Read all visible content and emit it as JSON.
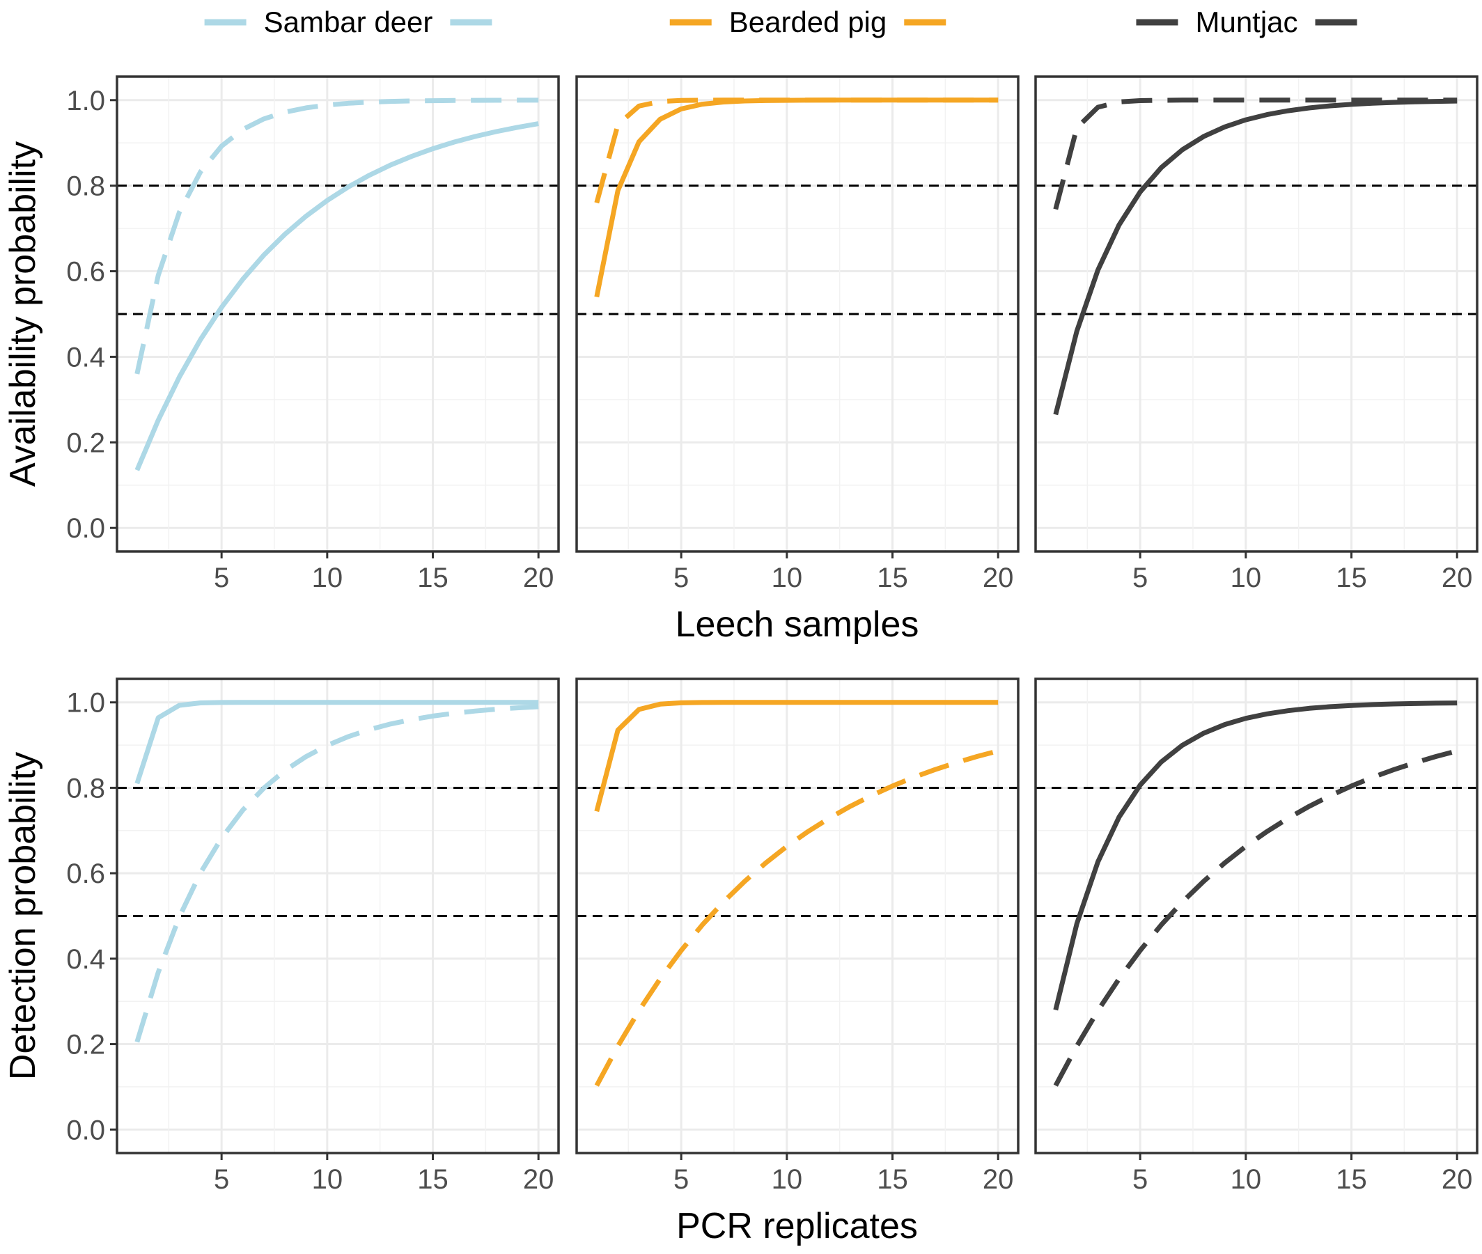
{
  "chart_data": {
    "type": "line",
    "legend": {
      "position": "top",
      "entries": [
        {
          "name": "Sambar deer",
          "color": "#ADD8E6"
        },
        {
          "name": "Bearded pig",
          "color": "#F5A623"
        },
        {
          "name": "Muntjac",
          "color": "#404040"
        }
      ]
    },
    "rows": [
      {
        "ylabel": "Availability probability",
        "xlabel": "Leech samples",
        "ylim": [
          0,
          1
        ],
        "xlim": [
          1,
          20
        ],
        "x_ticks": [
          5,
          10,
          15,
          20
        ],
        "y_ticks": [
          "0.0",
          "0.2",
          "0.4",
          "0.6",
          "0.8",
          "1.0"
        ],
        "reference_lines": [
          0.5,
          0.8
        ],
        "panels": [
          {
            "species": "Sambar deer",
            "series": [
              {
                "style": "solid",
                "p": 0.135
              },
              {
                "style": "dashed",
                "p": 0.36
              }
            ]
          },
          {
            "species": "Bearded pig",
            "series": [
              {
                "style": "solid",
                "p": 0.54
              },
              {
                "style": "dashed",
                "p": 0.76
              }
            ]
          },
          {
            "species": "Muntjac",
            "series": [
              {
                "style": "solid",
                "p": 0.265
              },
              {
                "style": "dashed",
                "p": 0.745
              }
            ]
          }
        ]
      },
      {
        "ylabel": "Detection probability",
        "xlabel": "PCR replicates",
        "ylim": [
          0,
          1
        ],
        "xlim": [
          1,
          20
        ],
        "x_ticks": [
          5,
          10,
          15,
          20
        ],
        "y_ticks": [
          "0.0",
          "0.2",
          "0.4",
          "0.6",
          "0.8",
          "1.0"
        ],
        "reference_lines": [
          0.5,
          0.8
        ],
        "panels": [
          {
            "species": "Sambar deer",
            "series": [
              {
                "style": "solid",
                "p": 0.81
              },
              {
                "style": "dashed",
                "p": 0.205
              }
            ]
          },
          {
            "species": "Bearded pig",
            "series": [
              {
                "style": "solid",
                "p": 0.745
              },
              {
                "style": "dashed",
                "p": 0.103
              }
            ]
          },
          {
            "species": "Muntjac",
            "series": [
              {
                "style": "solid",
                "p": 0.28
              },
              {
                "style": "dashed",
                "p": 0.103
              }
            ]
          }
        ]
      }
    ]
  }
}
